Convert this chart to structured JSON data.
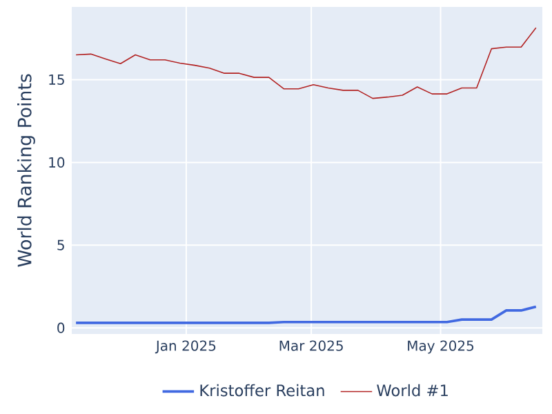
{
  "chart_data": {
    "type": "line",
    "ylabel": "World Ranking Points",
    "x": [
      "2024-11-10",
      "2024-11-17",
      "2024-11-24",
      "2024-12-01",
      "2024-12-08",
      "2024-12-15",
      "2024-12-22",
      "2024-12-29",
      "2025-01-05",
      "2025-01-12",
      "2025-01-19",
      "2025-01-26",
      "2025-02-02",
      "2025-02-09",
      "2025-02-16",
      "2025-02-23",
      "2025-03-02",
      "2025-03-09",
      "2025-03-16",
      "2025-03-23",
      "2025-03-30",
      "2025-04-06",
      "2025-04-13",
      "2025-04-20",
      "2025-04-27",
      "2025-05-04",
      "2025-05-11",
      "2025-05-18",
      "2025-05-25",
      "2025-06-01",
      "2025-06-08",
      "2025-06-15"
    ],
    "series": [
      {
        "name": "Kristoffer Reitan",
        "color": "#4169e1",
        "values": [
          0.3,
          0.3,
          0.3,
          0.3,
          0.3,
          0.3,
          0.3,
          0.3,
          0.3,
          0.3,
          0.3,
          0.3,
          0.3,
          0.3,
          0.35,
          0.35,
          0.35,
          0.35,
          0.35,
          0.35,
          0.35,
          0.35,
          0.35,
          0.35,
          0.35,
          0.35,
          0.5,
          0.5,
          0.5,
          1.05,
          1.05,
          1.28
        ]
      },
      {
        "name": "World #1",
        "color": "#b22222",
        "values": [
          16.5,
          16.55,
          16.25,
          15.97,
          16.5,
          16.2,
          16.2,
          16.0,
          15.87,
          15.7,
          15.39,
          15.39,
          15.14,
          15.14,
          14.45,
          14.45,
          14.7,
          14.5,
          14.36,
          14.36,
          13.87,
          13.95,
          14.06,
          14.56,
          14.14,
          14.14,
          14.5,
          14.5,
          16.87,
          16.97,
          16.97,
          18.14
        ]
      }
    ],
    "xlim": [
      "2024-11-08",
      "2025-06-18"
    ],
    "ylim": [
      -0.37,
      19.4
    ],
    "xticks": [
      {
        "value": "2025-01-01",
        "label": "Jan 2025"
      },
      {
        "value": "2025-03-01",
        "label": "Mar 2025"
      },
      {
        "value": "2025-05-01",
        "label": "May 2025"
      }
    ],
    "yticks": [
      0,
      5,
      10,
      15
    ],
    "grid": true,
    "legend": "bottom"
  }
}
